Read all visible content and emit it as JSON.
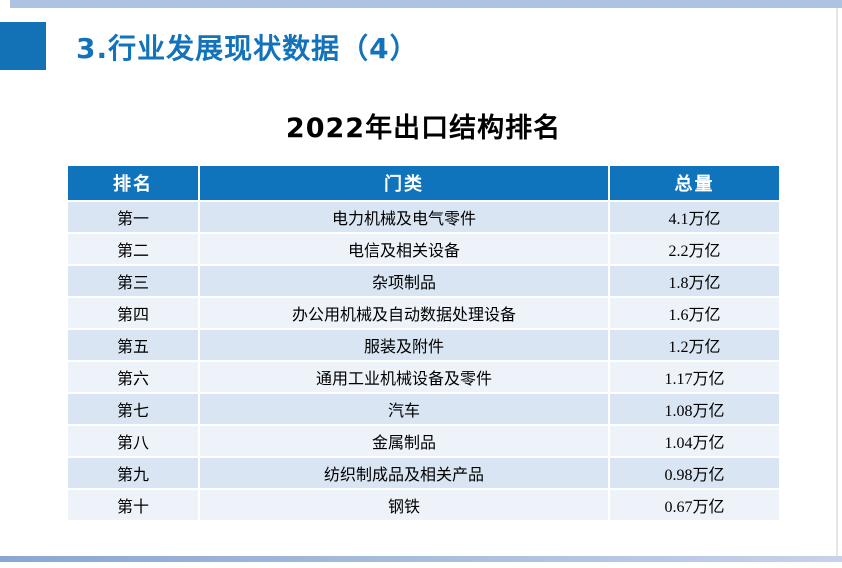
{
  "page_title": "3.行业发展现状数据（4）",
  "table_title": "2022年出口结构排名",
  "table": {
    "columns": [
      "排名",
      "门类",
      "总量"
    ],
    "rows": [
      [
        "第一",
        "电力机械及电气零件",
        "4.1万亿"
      ],
      [
        "第二",
        "电信及相关设备",
        "2.2万亿"
      ],
      [
        "第三",
        "杂项制品",
        "1.8万亿"
      ],
      [
        "第四",
        "办公用机械及自动数据处理设备",
        "1.6万亿"
      ],
      [
        "第五",
        "服装及附件",
        "1.2万亿"
      ],
      [
        "第六",
        "通用工业机械设备及零件",
        "1.17万亿"
      ],
      [
        "第七",
        "汽车",
        "1.08万亿"
      ],
      [
        "第八",
        "金属制品",
        "1.04万亿"
      ],
      [
        "第九",
        "纺织制成品及相关产品",
        "0.98万亿"
      ],
      [
        "第十",
        "钢铁",
        "0.67万亿"
      ]
    ]
  },
  "colors": {
    "accent_blue": "#1272b5",
    "header_blue": "#0f74bc",
    "row_odd": "#d9e5f2",
    "row_even": "#eef2f9",
    "top_bar": "#aec2e1",
    "bottom_bar_left": "#8aa6d3",
    "bottom_bar_right": "#c6d2ea",
    "title_text": "#1273ba"
  },
  "chart_data": {
    "type": "table",
    "title": "2022年出口结构排名",
    "columns": [
      "排名",
      "门类",
      "总量"
    ],
    "rows": [
      [
        "第一",
        "电力机械及电气零件",
        "4.1万亿"
      ],
      [
        "第二",
        "电信及相关设备",
        "2.2万亿"
      ],
      [
        "第三",
        "杂项制品",
        "1.8万亿"
      ],
      [
        "第四",
        "办公用机械及自动数据处理设备",
        "1.6万亿"
      ],
      [
        "第五",
        "服装及附件",
        "1.2万亿"
      ],
      [
        "第六",
        "通用工业机械设备及零件",
        "1.17万亿"
      ],
      [
        "第七",
        "汽车",
        "1.08万亿"
      ],
      [
        "第八",
        "金属制品",
        "1.04万亿"
      ],
      [
        "第九",
        "纺织制成品及相关产品",
        "0.98万亿"
      ],
      [
        "第十",
        "钢铁",
        "0.67万亿"
      ]
    ],
    "values_trillion_yuan": [
      4.1,
      2.2,
      1.8,
      1.6,
      1.2,
      1.17,
      1.08,
      1.04,
      0.98,
      0.67
    ]
  }
}
